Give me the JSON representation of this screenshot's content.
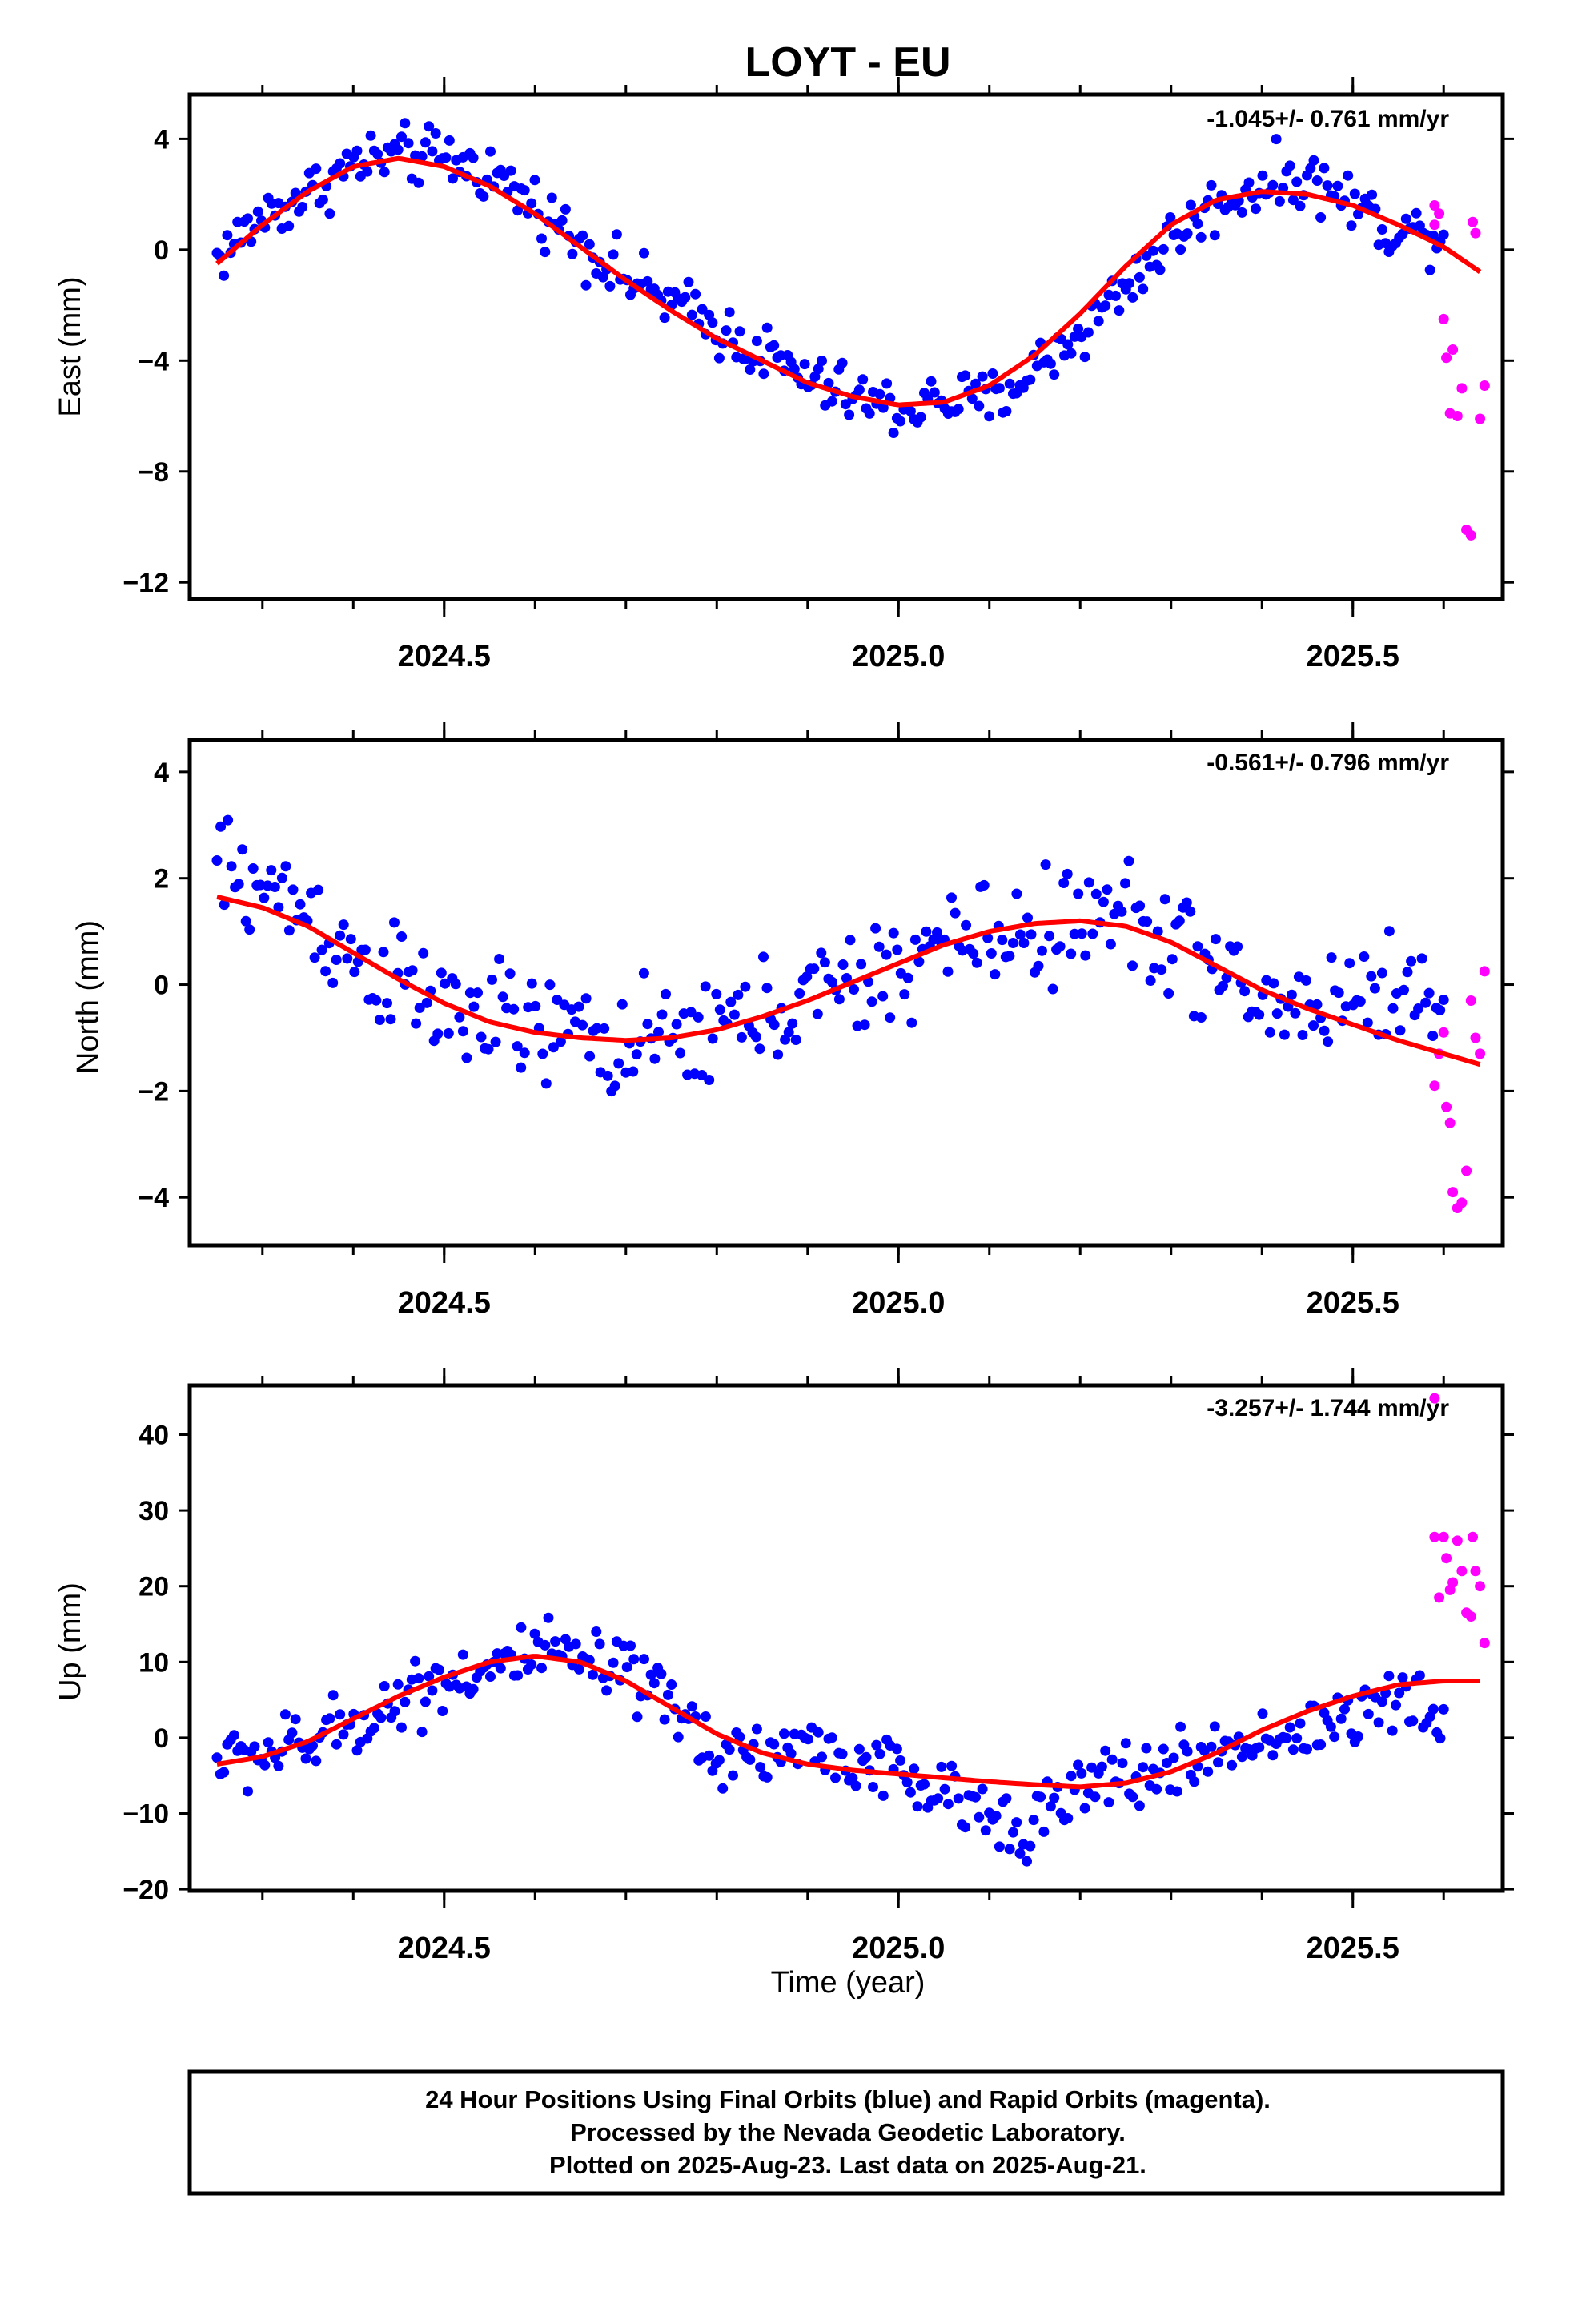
{
  "title": "LOYT - EU",
  "xlabel": "Time (year)",
  "footer": {
    "line1": "24 Hour Positions Using Final Orbits (blue) and Rapid Orbits (magenta).",
    "line2": "Processed by the Nevada Geodetic Laboratory.",
    "line3": "Plotted on 2025-Aug-23. Last data on 2025-Aug-21."
  },
  "colors": {
    "final": "#0000ff",
    "rapid": "#ff00ff",
    "model": "#ff0000",
    "axis": "#000000"
  },
  "chart_data": [
    {
      "type": "scatter",
      "ylabel": "East (mm)",
      "rate": "-1.045+/- 0.761 mm/yr",
      "xlim": [
        2024.22,
        2025.665
      ],
      "ylim": [
        -12.6,
        5.6
      ],
      "yticks": [
        4,
        0,
        -4,
        -8,
        -12
      ],
      "ytick_labels": [
        "4",
        "0",
        "−4",
        "−8",
        "−12"
      ],
      "xticks": [
        2024.5,
        2025.0,
        2025.5
      ],
      "xtick_labels": [
        "2024.5",
        "2025.0",
        "2025.5"
      ],
      "model": {
        "x": [
          2024.25,
          2024.3,
          2024.35,
          2024.4,
          2024.45,
          2024.5,
          2024.55,
          2024.6,
          2024.65,
          2024.7,
          2024.75,
          2024.8,
          2024.85,
          2024.9,
          2024.95,
          2025.0,
          2025.05,
          2025.1,
          2025.15,
          2025.2,
          2025.25,
          2025.3,
          2025.35,
          2025.4,
          2025.45,
          2025.5,
          2025.55,
          2025.6,
          2025.64
        ],
        "y": [
          -0.5,
          0.9,
          2.1,
          3.0,
          3.3,
          3.0,
          2.3,
          1.3,
          0.1,
          -1.1,
          -2.2,
          -3.2,
          -4.0,
          -4.8,
          -5.3,
          -5.6,
          -5.5,
          -4.9,
          -3.8,
          -2.3,
          -0.6,
          0.9,
          1.8,
          2.1,
          2.0,
          1.6,
          0.9,
          0.1,
          -0.8
        ]
      },
      "final_anchors": {
        "x": [
          2024.25,
          2024.3,
          2024.35,
          2024.4,
          2024.45,
          2024.5,
          2024.55,
          2024.6,
          2024.65,
          2024.7,
          2024.75,
          2024.8,
          2024.85,
          2024.9,
          2024.95,
          2025.0,
          2025.05,
          2025.1,
          2025.15,
          2025.2,
          2025.25,
          2025.3,
          2025.35,
          2025.4,
          2025.45,
          2025.5,
          2025.55,
          2025.6
        ],
        "y": [
          -0.3,
          1.2,
          2.0,
          3.1,
          3.4,
          3.3,
          2.8,
          1.6,
          0.3,
          -1.0,
          -1.9,
          -2.8,
          -3.7,
          -4.7,
          -5.3,
          -5.8,
          -5.4,
          -5.5,
          -4.3,
          -3.0,
          -1.3,
          0.4,
          1.6,
          2.4,
          2.6,
          1.7,
          0.6,
          0.7
        ]
      },
      "final_spread": 0.75,
      "final_count": 360,
      "final_range": [
        2024.25,
        2025.6
      ],
      "rapid": {
        "x": [
          2025.59,
          2025.59,
          2025.595,
          2025.6,
          2025.603,
          2025.607,
          2025.61,
          2025.615,
          2025.62,
          2025.625,
          2025.63,
          2025.632,
          2025.635,
          2025.64,
          2025.645
        ],
        "y": [
          0.9,
          1.6,
          1.3,
          -2.5,
          -3.9,
          -5.9,
          -3.6,
          -6.0,
          -5.0,
          -10.1,
          -10.3,
          1.0,
          0.6,
          -6.1,
          -4.9
        ]
      }
    },
    {
      "type": "scatter",
      "ylabel": "North (mm)",
      "rate": "-0.561+/- 0.796 mm/yr",
      "xlim": [
        2024.22,
        2025.665
      ],
      "ylim": [
        -4.9,
        4.6
      ],
      "yticks": [
        4,
        2,
        0,
        -2,
        -4
      ],
      "ytick_labels": [
        "4",
        "2",
        "0",
        "−2",
        "−4"
      ],
      "xticks": [
        2024.5,
        2025.0,
        2025.5
      ],
      "xtick_labels": [
        "2024.5",
        "2025.0",
        "2025.5"
      ],
      "model": {
        "x": [
          2024.25,
          2024.3,
          2024.35,
          2024.4,
          2024.45,
          2024.5,
          2024.55,
          2024.6,
          2024.65,
          2024.7,
          2024.75,
          2024.8,
          2024.85,
          2024.9,
          2024.95,
          2025.0,
          2025.05,
          2025.1,
          2025.15,
          2025.2,
          2025.25,
          2025.3,
          2025.35,
          2025.4,
          2025.45,
          2025.5,
          2025.55,
          2025.6,
          2025.64
        ],
        "y": [
          1.65,
          1.45,
          1.1,
          0.6,
          0.1,
          -0.35,
          -0.7,
          -0.9,
          -1.0,
          -1.05,
          -1.0,
          -0.85,
          -0.6,
          -0.3,
          0.05,
          0.4,
          0.75,
          1.0,
          1.15,
          1.2,
          1.1,
          0.8,
          0.35,
          -0.1,
          -0.45,
          -0.75,
          -1.05,
          -1.3,
          -1.5
        ]
      },
      "final_anchors": {
        "x": [
          2024.25,
          2024.3,
          2024.35,
          2024.4,
          2024.45,
          2024.5,
          2024.55,
          2024.6,
          2024.65,
          2024.7,
          2024.75,
          2024.8,
          2024.85,
          2024.9,
          2024.95,
          2025.0,
          2025.05,
          2025.1,
          2025.15,
          2025.2,
          2025.25,
          2025.3,
          2025.35,
          2025.4,
          2025.45,
          2025.5,
          2025.55,
          2025.6
        ],
        "y": [
          2.2,
          1.8,
          1.4,
          0.5,
          0.0,
          -0.5,
          -0.6,
          -0.9,
          -0.9,
          -1.2,
          -1.1,
          -0.8,
          -0.6,
          -0.2,
          -0.1,
          0.3,
          0.8,
          0.9,
          1.0,
          1.2,
          1.3,
          0.9,
          0.2,
          -0.4,
          -0.4,
          -0.2,
          0.0,
          -0.6
        ]
      },
      "final_spread": 0.75,
      "final_count": 340,
      "final_range": [
        2024.25,
        2025.6
      ],
      "rapid": {
        "x": [
          2025.59,
          2025.595,
          2025.6,
          2025.603,
          2025.607,
          2025.61,
          2025.615,
          2025.62,
          2025.625,
          2025.63,
          2025.635,
          2025.64,
          2025.645
        ],
        "y": [
          -1.9,
          -1.3,
          -0.9,
          -2.3,
          -2.6,
          -3.9,
          -4.2,
          -4.1,
          -3.5,
          -0.3,
          -1.0,
          -1.3,
          0.25
        ]
      }
    },
    {
      "type": "scatter",
      "ylabel": "Up (mm)",
      "rate": "-3.257+/- 1.744 mm/yr",
      "xlim": [
        2024.22,
        2025.665
      ],
      "ylim": [
        -20.2,
        46.5
      ],
      "yticks": [
        40,
        30,
        20,
        10,
        0,
        -10,
        -20
      ],
      "ytick_labels": [
        "40",
        "30",
        "20",
        "10",
        "0",
        "−10",
        "−20"
      ],
      "xticks": [
        2024.5,
        2025.0,
        2025.5
      ],
      "xtick_labels": [
        "2024.5",
        "2025.0",
        "2025.5"
      ],
      "model": {
        "x": [
          2024.25,
          2024.3,
          2024.35,
          2024.4,
          2024.45,
          2024.5,
          2024.55,
          2024.6,
          2024.65,
          2024.7,
          2024.75,
          2024.8,
          2024.85,
          2024.9,
          2024.95,
          2025.0,
          2025.05,
          2025.1,
          2025.15,
          2025.2,
          2025.25,
          2025.3,
          2025.35,
          2025.4,
          2025.45,
          2025.5,
          2025.55,
          2025.6,
          2025.64
        ],
        "y": [
          -3.5,
          -2.5,
          -0.5,
          2.5,
          5.5,
          8.0,
          10.0,
          10.8,
          10.0,
          7.5,
          4.0,
          0.5,
          -2.0,
          -3.5,
          -4.3,
          -4.8,
          -5.3,
          -5.8,
          -6.2,
          -6.5,
          -6.0,
          -4.5,
          -2.0,
          1.0,
          3.5,
          5.5,
          7.0,
          7.5,
          7.5
        ]
      },
      "final_anchors": {
        "x": [
          2024.25,
          2024.3,
          2024.35,
          2024.4,
          2024.45,
          2024.5,
          2024.55,
          2024.6,
          2024.65,
          2024.7,
          2024.75,
          2024.8,
          2024.85,
          2024.9,
          2024.95,
          2025.0,
          2025.05,
          2025.1,
          2025.15,
          2025.2,
          2025.25,
          2025.3,
          2025.35,
          2025.4,
          2025.45,
          2025.5,
          2025.55,
          2025.6
        ],
        "y": [
          -3.0,
          -2.0,
          -1.0,
          2.0,
          5.0,
          8.0,
          9.0,
          11.0,
          10.0,
          8.0,
          4.0,
          -2.0,
          -2.0,
          -1.0,
          -3.0,
          -5.0,
          -8.0,
          -10.0,
          -11.0,
          -7.0,
          -5.0,
          -4.0,
          -2.0,
          0.0,
          1.0,
          3.0,
          5.0,
          2.0
        ]
      },
      "final_spread": 3.2,
      "final_count": 360,
      "final_range": [
        2024.25,
        2025.6
      ],
      "rapid": {
        "x": [
          2025.59,
          2025.59,
          2025.595,
          2025.6,
          2025.603,
          2025.607,
          2025.61,
          2025.615,
          2025.62,
          2025.625,
          2025.63,
          2025.632,
          2025.635,
          2025.64,
          2025.645
        ],
        "y": [
          44.8,
          26.5,
          18.5,
          26.5,
          23.7,
          19.5,
          20.5,
          26.0,
          22.0,
          16.5,
          16.0,
          26.5,
          22.0,
          20.0,
          12.5
        ]
      }
    }
  ]
}
